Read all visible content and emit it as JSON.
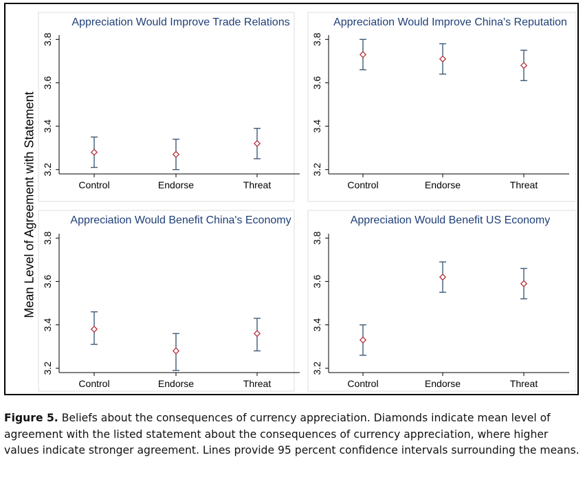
{
  "figure": {
    "ylabel": "Mean Level of Agreement with Statement"
  },
  "chart_data": [
    {
      "type": "scatter",
      "title": "Appreciation Would Improve Trade Relations",
      "categories": [
        "Control",
        "Endorse",
        "Threat"
      ],
      "means": [
        3.28,
        3.27,
        3.32
      ],
      "ci_low": [
        3.21,
        3.2,
        3.25
      ],
      "ci_high": [
        3.35,
        3.34,
        3.39
      ],
      "yticks": [
        3.2,
        3.4,
        3.6,
        3.8
      ],
      "ytick_labels": [
        "3.2",
        "3.4",
        "3.6",
        "3.8"
      ],
      "ylim": [
        3.18,
        3.82
      ]
    },
    {
      "type": "scatter",
      "title": "Appreciation Would Improve China's Reputation",
      "categories": [
        "Control",
        "Endorse",
        "Threat"
      ],
      "means": [
        3.73,
        3.71,
        3.68
      ],
      "ci_low": [
        3.66,
        3.64,
        3.61
      ],
      "ci_high": [
        3.8,
        3.78,
        3.75
      ],
      "yticks": [
        3.2,
        3.4,
        3.6,
        3.8
      ],
      "ytick_labels": [
        "3.2",
        "3.4",
        "3.6",
        "3.8"
      ],
      "ylim": [
        3.18,
        3.82
      ]
    },
    {
      "type": "scatter",
      "title": "Appreciation Would Benefit China's Economy",
      "categories": [
        "Control",
        "Endorse",
        "Threat"
      ],
      "means": [
        3.38,
        3.28,
        3.36
      ],
      "ci_low": [
        3.31,
        3.19,
        3.28
      ],
      "ci_high": [
        3.46,
        3.36,
        3.43
      ],
      "yticks": [
        3.2,
        3.4,
        3.6,
        3.8
      ],
      "ytick_labels": [
        "3.2",
        "3.4",
        "3.6",
        "3.8"
      ],
      "ylim": [
        3.18,
        3.82
      ]
    },
    {
      "type": "scatter",
      "title": "Appreciation Would Benefit US Economy",
      "categories": [
        "Control",
        "Endorse",
        "Threat"
      ],
      "means": [
        3.33,
        3.62,
        3.59
      ],
      "ci_low": [
        3.26,
        3.55,
        3.52
      ],
      "ci_high": [
        3.4,
        3.69,
        3.66
      ],
      "yticks": [
        3.2,
        3.4,
        3.6,
        3.8
      ],
      "ytick_labels": [
        "3.2",
        "3.4",
        "3.6",
        "3.8"
      ],
      "ylim": [
        3.18,
        3.82
      ]
    }
  ],
  "caption": {
    "label": "Figure 5.",
    "text": " Beliefs about the consequences of currency appreciation. Diamonds indicate mean level of agreement with the listed statement about the consequences of currency appreciation, where higher values indicate stronger agreement. Lines provide 95 percent confidence intervals surrounding the means."
  },
  "colors": {
    "ci_line": "#3d5a78",
    "diamond": "#b5303b",
    "title": "#1f3f78",
    "axis": "#000000",
    "panel_border": "#dcdcdc"
  }
}
